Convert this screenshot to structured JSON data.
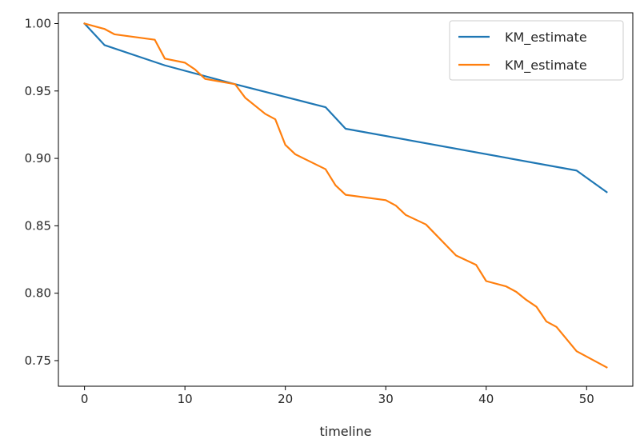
{
  "chart_data": {
    "type": "line",
    "title": "",
    "xlabel": "timeline",
    "ylabel": "",
    "xlim": [
      -2.6,
      54.6
    ],
    "ylim": [
      0.731,
      1.008
    ],
    "xticks": [
      0,
      10,
      20,
      30,
      40,
      50
    ],
    "yticks": [
      0.75,
      0.8,
      0.85,
      0.9,
      0.95,
      1.0
    ],
    "xtick_labels": [
      "0",
      "10",
      "20",
      "30",
      "40",
      "50"
    ],
    "ytick_labels": [
      "0.75",
      "0.80",
      "0.85",
      "0.90",
      "0.95",
      "1.00"
    ],
    "grid": false,
    "legend_position": "upper right",
    "series": [
      {
        "name": "KM_estimate",
        "color": "#1f77b4",
        "x": [
          0,
          2,
          8,
          15,
          24,
          26,
          49,
          52
        ],
        "y": [
          1.0,
          0.984,
          0.969,
          0.955,
          0.938,
          0.922,
          0.891,
          0.875
        ]
      },
      {
        "name": "KM_estimate",
        "color": "#ff7f0e",
        "x": [
          0,
          2,
          3,
          7,
          8,
          10,
          11,
          12,
          15,
          16,
          18,
          19,
          20,
          21,
          24,
          25,
          26,
          30,
          31,
          32,
          34,
          37,
          39,
          40,
          42,
          43,
          44,
          45,
          46,
          47,
          49,
          52
        ],
        "y": [
          1.0,
          0.996,
          0.992,
          0.988,
          0.974,
          0.971,
          0.966,
          0.959,
          0.955,
          0.945,
          0.933,
          0.929,
          0.91,
          0.903,
          0.892,
          0.88,
          0.873,
          0.869,
          0.865,
          0.858,
          0.851,
          0.828,
          0.821,
          0.809,
          0.805,
          0.801,
          0.795,
          0.79,
          0.779,
          0.775,
          0.757,
          0.745
        ]
      }
    ]
  }
}
